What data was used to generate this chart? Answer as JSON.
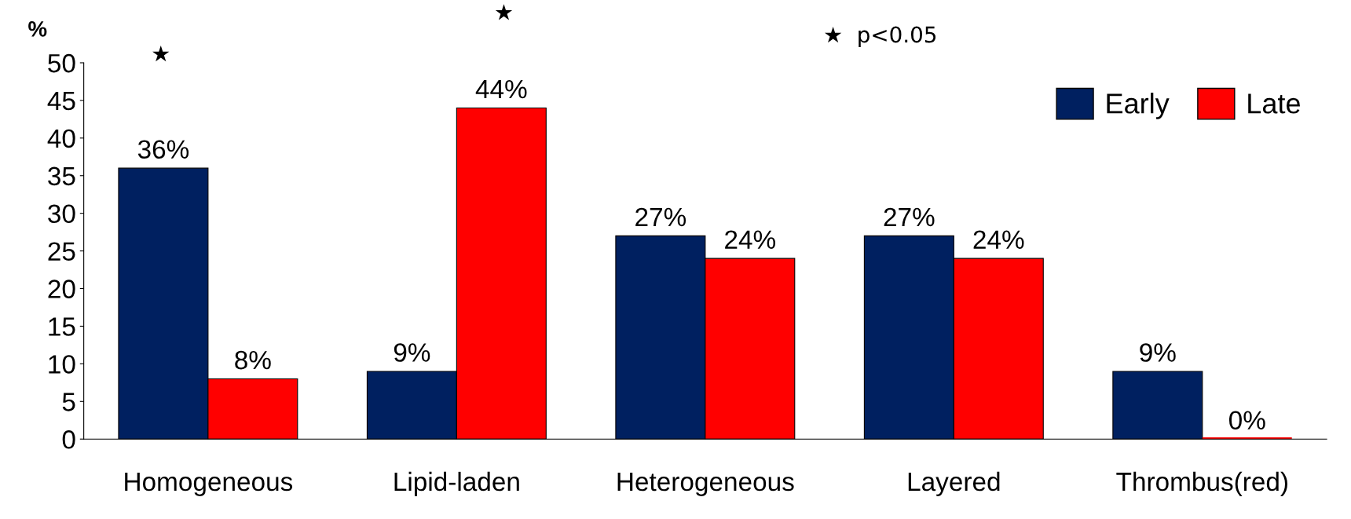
{
  "chart_data": {
    "type": "bar",
    "ylabel": "%",
    "categories": [
      "Homogeneous",
      "Lipid-laden",
      "Heterogeneous",
      "Layered",
      "Thrombus(red)"
    ],
    "series": [
      {
        "name": "Early",
        "color": "#002060",
        "values": [
          36,
          9,
          27,
          27,
          9
        ],
        "value_labels": [
          "36%",
          "9%",
          "27%",
          "27%",
          "9%"
        ]
      },
      {
        "name": "Late",
        "color": "#ff0000",
        "values": [
          8,
          44,
          24,
          24,
          0
        ],
        "value_labels": [
          "8%",
          "44%",
          "24%",
          "24%",
          "0%"
        ]
      }
    ],
    "ylim": [
      0,
      50
    ],
    "yticks": [
      0,
      5,
      10,
      15,
      20,
      25,
      30,
      35,
      40,
      45,
      50
    ],
    "grid": false,
    "legend": "top right",
    "annotations": [
      "★",
      "★",
      "★  p<0.05"
    ]
  }
}
